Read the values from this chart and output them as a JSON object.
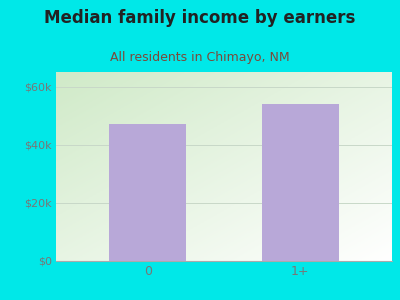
{
  "title": "Median family income by earners",
  "subtitle": "All residents in Chimayo, NM",
  "categories": [
    "0",
    "1+"
  ],
  "values": [
    47000,
    54000
  ],
  "bar_color": "#b8a8d8",
  "title_fontsize": 12,
  "subtitle_fontsize": 9,
  "title_color": "#222222",
  "subtitle_color": "#7a4a3a",
  "ylabel_ticks": [
    0,
    20000,
    40000,
    60000
  ],
  "ylabel_labels": [
    "$0",
    "$20k",
    "$40k",
    "$60k"
  ],
  "ylim": [
    0,
    65000
  ],
  "outer_bg_color": "#00e8e8",
  "plot_bg_top_left": "#d0eac8",
  "plot_bg_bottom_right": "#f8faf8",
  "grid_color": "#c8d8c8",
  "tick_color": "#777777",
  "axis_color": "#aaaaaa"
}
